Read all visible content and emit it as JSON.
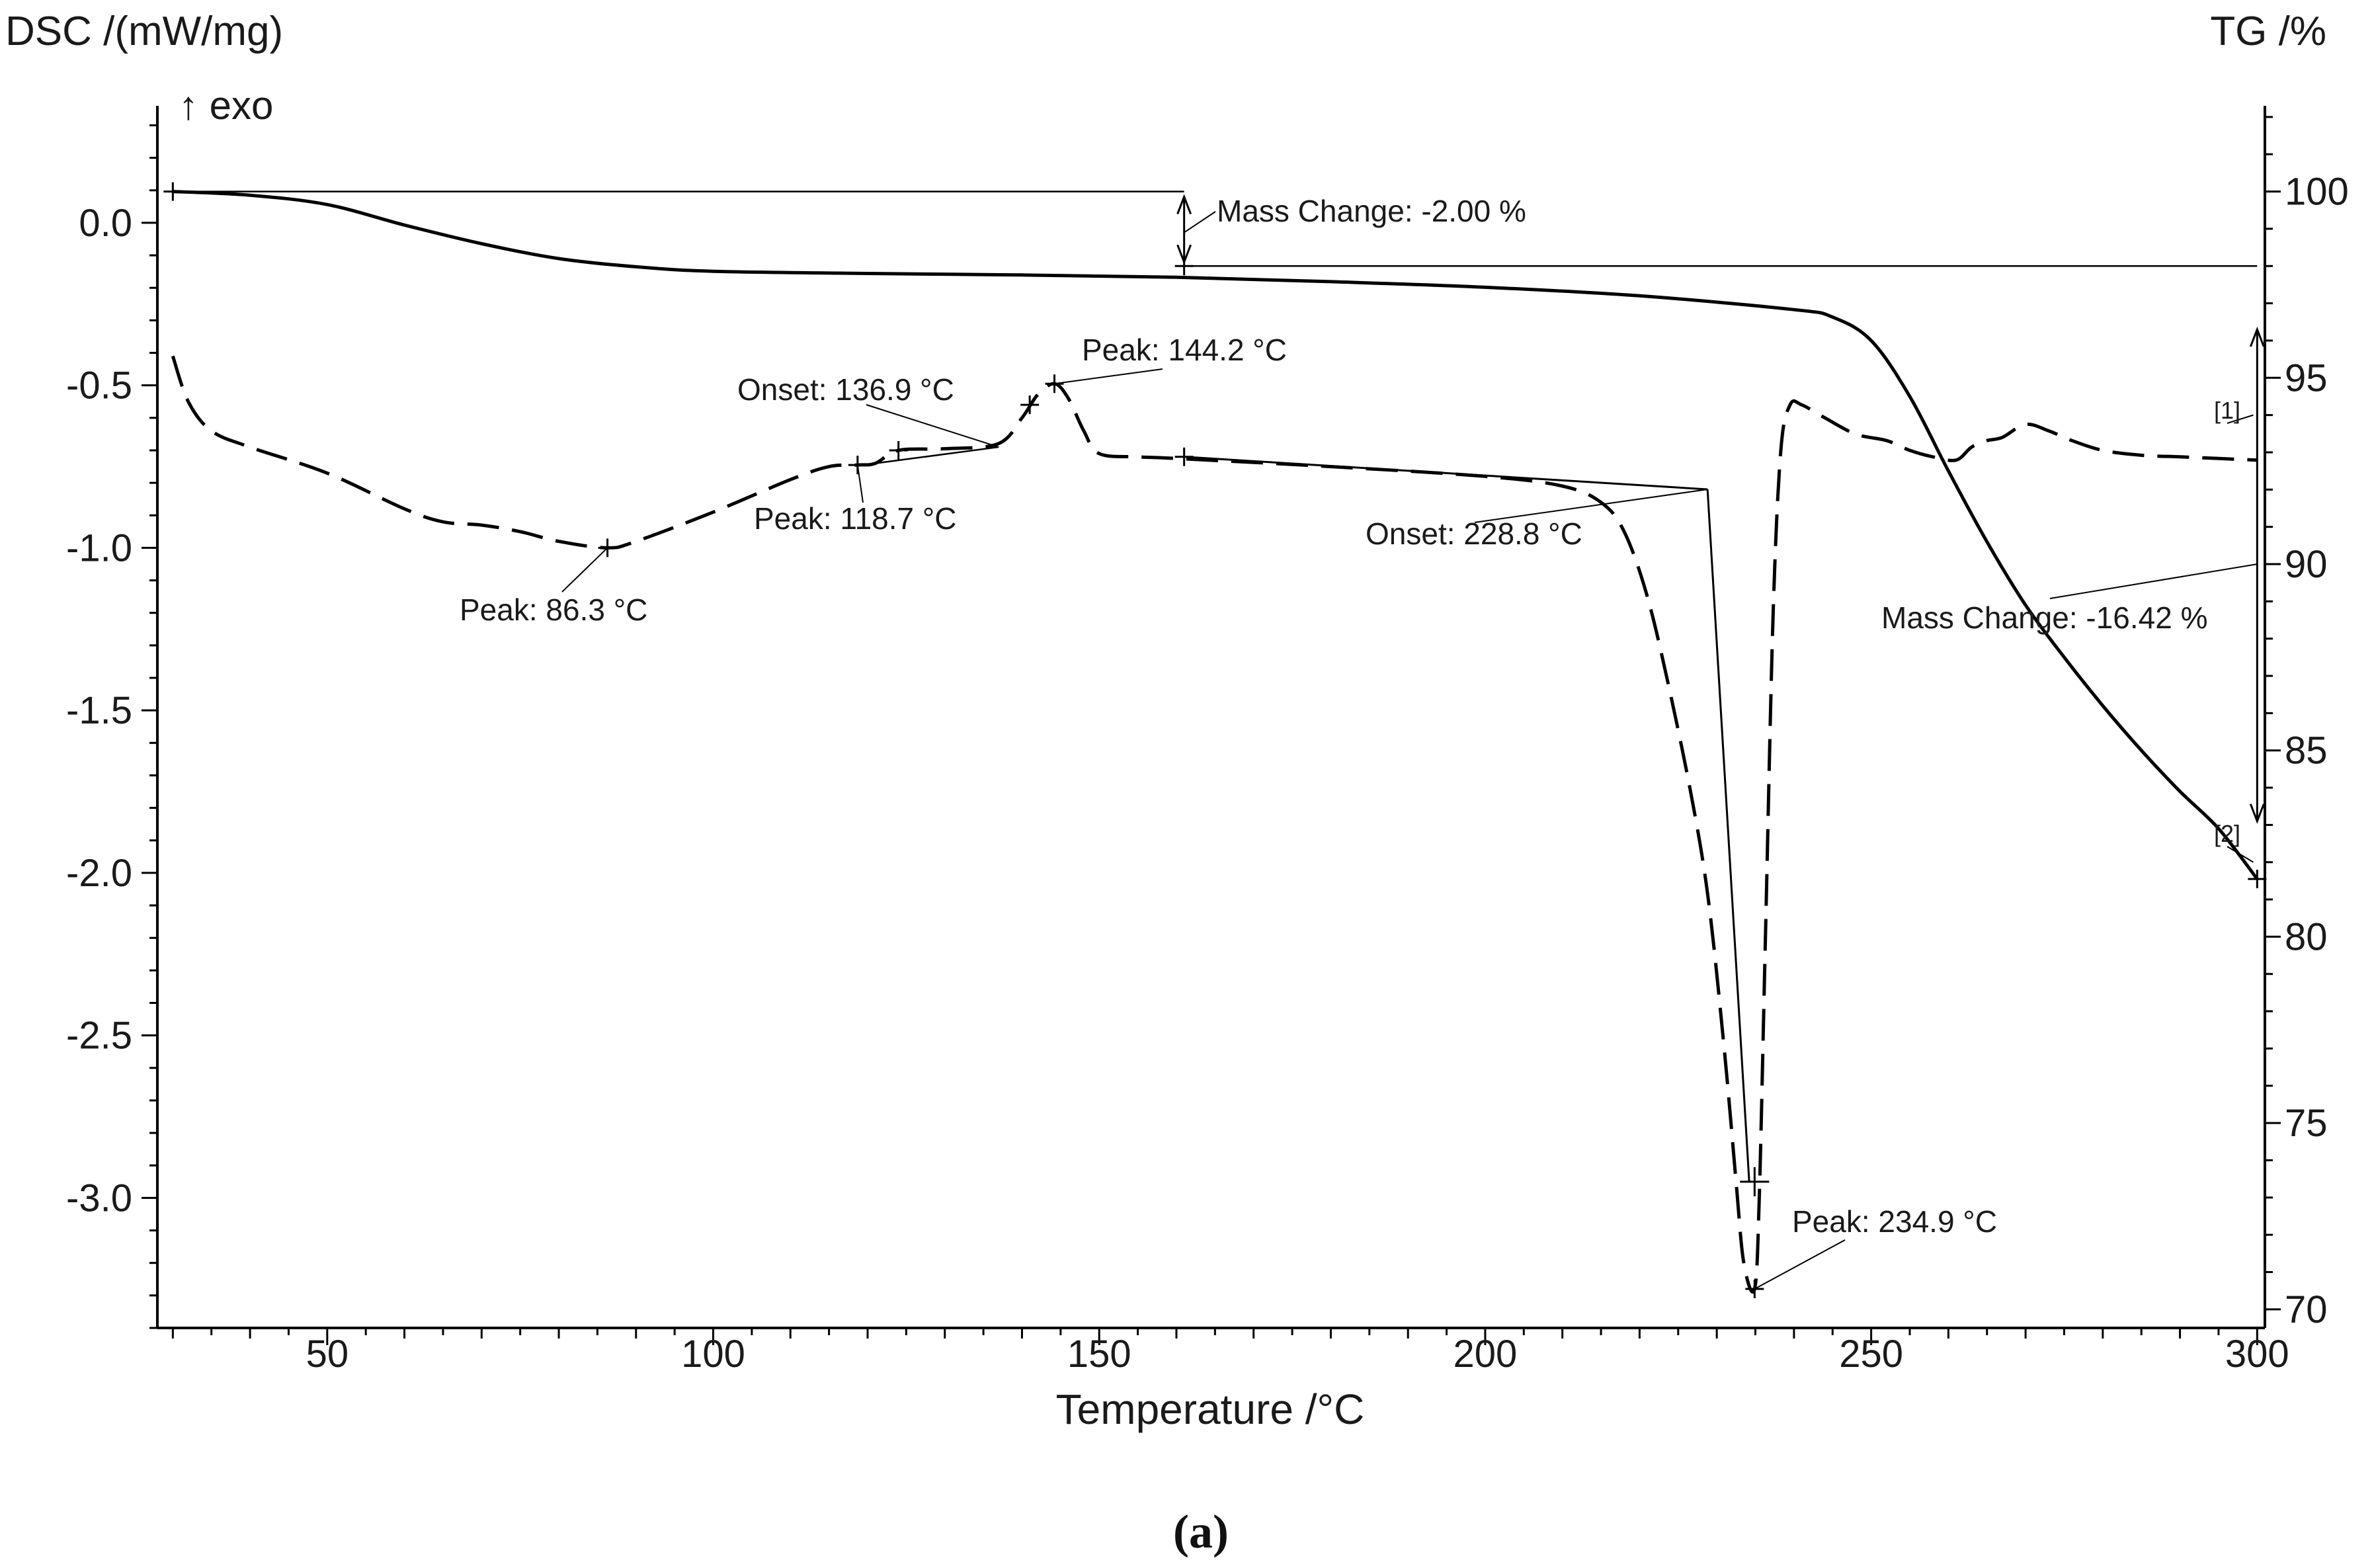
{
  "figure": {
    "caption": "(a)",
    "dsc_label": "DSC /(mW/mg)",
    "tg_label": "TG /%",
    "exo_label": "↑ exo",
    "xlabel": "Temperature /°C"
  },
  "chart_data": {
    "type": "line",
    "x_axis": {
      "label": "Temperature /°C",
      "range": [
        28,
        301
      ],
      "ticks": [
        50,
        100,
        150,
        200,
        250,
        300
      ]
    },
    "y_left": {
      "label": "DSC /(mW/mg)",
      "range": [
        -3.4,
        0.36
      ],
      "ticks": [
        0.0,
        -0.5,
        -1.0,
        -1.5,
        -2.0,
        -2.5,
        -3.0
      ],
      "tick_labels": [
        "0.0",
        "-0.5",
        "-1.0",
        "-1.5",
        "-2.0",
        "-2.5",
        "-3.0"
      ]
    },
    "y_right": {
      "label": "TG /%",
      "range": [
        69.5,
        102.3
      ],
      "ticks": [
        100,
        95,
        90,
        85,
        80,
        75,
        70
      ],
      "tick_labels": [
        "100",
        "95",
        "90",
        "85",
        "80",
        "75",
        "70"
      ]
    },
    "series": [
      {
        "name": "TG",
        "axis": "right",
        "style": "solid",
        "points": [
          [
            30,
            100
          ],
          [
            40,
            99.9
          ],
          [
            50,
            99.65
          ],
          [
            60,
            99.1
          ],
          [
            70,
            98.6
          ],
          [
            80,
            98.2
          ],
          [
            90,
            97.98
          ],
          [
            100,
            97.86
          ],
          [
            120,
            97.8
          ],
          [
            140,
            97.76
          ],
          [
            160,
            97.7
          ],
          [
            180,
            97.58
          ],
          [
            200,
            97.43
          ],
          [
            220,
            97.2
          ],
          [
            240,
            96.83
          ],
          [
            245,
            96.63
          ],
          [
            250,
            96.0
          ],
          [
            255,
            94.5
          ],
          [
            260,
            92.5
          ],
          [
            265,
            90.6
          ],
          [
            270,
            88.9
          ],
          [
            275,
            87.5
          ],
          [
            280,
            86.2
          ],
          [
            285,
            85.0
          ],
          [
            290,
            83.9
          ],
          [
            295,
            82.9
          ],
          [
            300,
            81.55
          ]
        ]
      },
      {
        "name": "DSC",
        "axis": "left",
        "style": "dashed",
        "points": [
          [
            30,
            -0.41
          ],
          [
            32,
            -0.55
          ],
          [
            35,
            -0.64
          ],
          [
            40,
            -0.69
          ],
          [
            50,
            -0.77
          ],
          [
            60,
            -0.88
          ],
          [
            65,
            -0.92
          ],
          [
            70,
            -0.93
          ],
          [
            75,
            -0.95
          ],
          [
            80,
            -0.98
          ],
          [
            86.3,
            -1.0
          ],
          [
            90,
            -0.98
          ],
          [
            100,
            -0.89
          ],
          [
            110,
            -0.79
          ],
          [
            115,
            -0.75
          ],
          [
            118.7,
            -0.745
          ],
          [
            121,
            -0.74
          ],
          [
            124,
            -0.7
          ],
          [
            130,
            -0.695
          ],
          [
            136.9,
            -0.68
          ],
          [
            140,
            -0.6
          ],
          [
            142,
            -0.53
          ],
          [
            144.2,
            -0.495
          ],
          [
            146,
            -0.54
          ],
          [
            148,
            -0.64
          ],
          [
            150,
            -0.71
          ],
          [
            155,
            -0.72
          ],
          [
            160,
            -0.725
          ],
          [
            180,
            -0.75
          ],
          [
            200,
            -0.78
          ],
          [
            210,
            -0.81
          ],
          [
            215,
            -0.86
          ],
          [
            218,
            -0.95
          ],
          [
            221,
            -1.15
          ],
          [
            224,
            -1.45
          ],
          [
            227,
            -1.8
          ],
          [
            229,
            -2.1
          ],
          [
            231,
            -2.55
          ],
          [
            232.5,
            -2.95
          ],
          [
            233.5,
            -3.2
          ],
          [
            234.9,
            -3.28
          ],
          [
            235.5,
            -3.0
          ],
          [
            236.3,
            -2.2
          ],
          [
            237.3,
            -1.2
          ],
          [
            238.3,
            -0.7
          ],
          [
            239.5,
            -0.56
          ],
          [
            241,
            -0.56
          ],
          [
            244,
            -0.6
          ],
          [
            248,
            -0.65
          ],
          [
            252,
            -0.67
          ],
          [
            255,
            -0.7
          ],
          [
            258,
            -0.72
          ],
          [
            261,
            -0.73
          ],
          [
            263,
            -0.69
          ],
          [
            265,
            -0.67
          ],
          [
            267,
            -0.66
          ],
          [
            270,
            -0.62
          ],
          [
            273,
            -0.64
          ],
          [
            276,
            -0.67
          ],
          [
            280,
            -0.7
          ],
          [
            285,
            -0.715
          ],
          [
            290,
            -0.72
          ],
          [
            295,
            -0.725
          ],
          [
            300,
            -0.73
          ]
        ]
      }
    ],
    "annotations": {
      "mass_change_1": "Mass Change: -2.00 %",
      "mass_change_2": "Mass Change: -16.42 %",
      "peak_86": "Peak: 86.3 °C",
      "peak_118": "Peak: 118.7 °C",
      "onset_136": "Onset: 136.9 °C",
      "peak_144": "Peak: 144.2 °C",
      "onset_228": "Onset: 228.8 °C",
      "peak_234": "Peak: 234.9 °C",
      "marker_1": "[1]",
      "marker_2": "[2]"
    }
  }
}
